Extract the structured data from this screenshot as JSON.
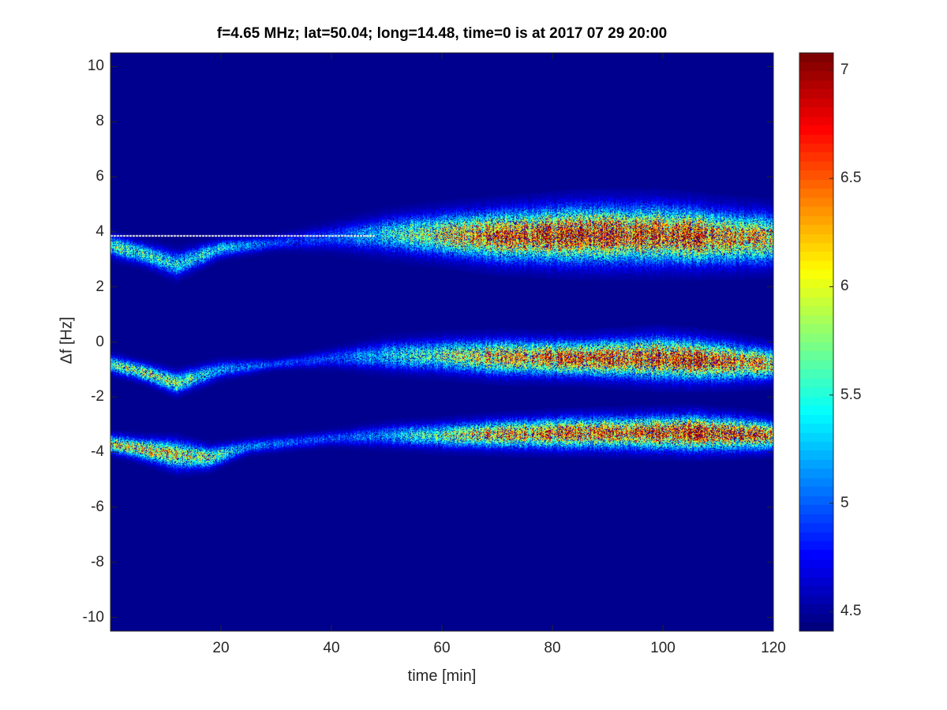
{
  "chart_data": {
    "type": "heatmap",
    "title": "f=4.65 MHz;  lat=50.04; long=14.48, time=0 is at 2017 07 29 20:00",
    "xlabel": "time [min]",
    "ylabel": "Δf [Hz]",
    "xlim": [
      0,
      120
    ],
    "ylim": [
      -10.5,
      10.5
    ],
    "xticks": [
      "20",
      "40",
      "60",
      "80",
      "100",
      "120"
    ],
    "xtick_values": [
      20,
      40,
      60,
      80,
      100,
      120
    ],
    "yticks": [
      "-10",
      "-8",
      "-6",
      "-4",
      "-2",
      "0",
      "2",
      "4",
      "6",
      "8",
      "10"
    ],
    "ytick_values": [
      -10,
      -8,
      -6,
      -4,
      -2,
      0,
      2,
      4,
      6,
      8,
      10
    ],
    "colormap": "jet",
    "clim": [
      4.41,
      7.08
    ],
    "colorbar_ticks": [
      "4.5",
      "5",
      "5.5",
      "6",
      "6.5",
      "7"
    ],
    "colorbar_tick_values": [
      4.5,
      5,
      5.5,
      6,
      6.5,
      7
    ],
    "background_value": 4.45,
    "bands": [
      {
        "name": "upper-echo",
        "t": [
          0,
          6,
          12,
          20,
          30,
          40,
          50,
          60,
          70,
          85,
          100,
          110,
          120
        ],
        "center": [
          3.5,
          3.2,
          2.8,
          3.4,
          3.6,
          3.8,
          3.9,
          3.9,
          3.85,
          3.9,
          3.9,
          3.8,
          3.75
        ],
        "peak": [
          5.8,
          5.7,
          5.6,
          5.5,
          5.0,
          5.0,
          5.6,
          6.3,
          6.8,
          7.0,
          7.0,
          6.7,
          6.3
        ],
        "halfwidth": [
          0.3,
          0.3,
          0.35,
          0.25,
          0.2,
          0.35,
          0.5,
          0.6,
          0.7,
          0.8,
          0.8,
          0.75,
          0.7
        ]
      },
      {
        "name": "middle-echo",
        "t": [
          0,
          6,
          12,
          20,
          30,
          40,
          50,
          60,
          70,
          85,
          100,
          110,
          120
        ],
        "center": [
          -0.8,
          -1.1,
          -1.5,
          -1.0,
          -0.8,
          -0.6,
          -0.5,
          -0.5,
          -0.55,
          -0.6,
          -0.6,
          -0.7,
          -0.8
        ],
        "peak": [
          5.8,
          6.0,
          6.0,
          5.3,
          5.0,
          5.0,
          5.5,
          5.9,
          6.4,
          6.8,
          7.0,
          6.8,
          6.3
        ],
        "halfwidth": [
          0.25,
          0.25,
          0.3,
          0.25,
          0.15,
          0.25,
          0.4,
          0.45,
          0.5,
          0.5,
          0.6,
          0.55,
          0.45
        ]
      },
      {
        "name": "lower-echo",
        "t": [
          0,
          6,
          12,
          18,
          25,
          40,
          50,
          60,
          70,
          85,
          105,
          115,
          120
        ],
        "center": [
          -3.7,
          -3.9,
          -4.1,
          -4.2,
          -3.8,
          -3.5,
          -3.4,
          -3.4,
          -3.35,
          -3.3,
          -3.3,
          -3.35,
          -3.4
        ],
        "peak": [
          6.2,
          6.3,
          6.3,
          6.0,
          5.2,
          5.0,
          5.3,
          5.9,
          6.4,
          6.7,
          7.05,
          6.9,
          6.5
        ],
        "halfwidth": [
          0.25,
          0.3,
          0.4,
          0.3,
          0.2,
          0.2,
          0.3,
          0.35,
          0.4,
          0.45,
          0.5,
          0.45,
          0.4
        ]
      }
    ],
    "reference_line": {
      "freq": 3.85,
      "t_start": 0,
      "t_end": 48,
      "color": "#ffffff"
    }
  }
}
